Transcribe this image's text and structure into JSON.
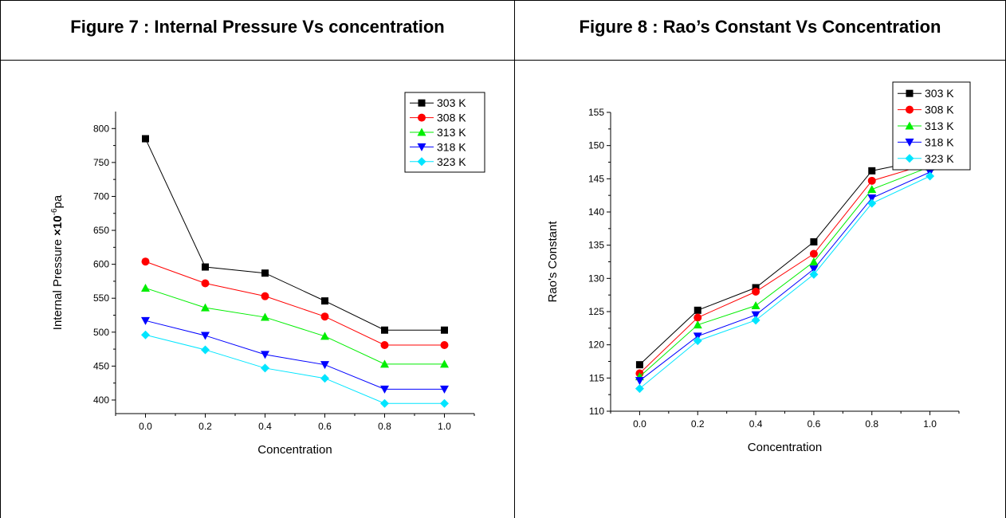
{
  "figures": [
    {
      "title": "Figure 7 :  Internal Pressure Vs concentration"
    },
    {
      "title": "Figure 8 :  Rao’s Constant Vs Concentration"
    }
  ],
  "chart_data": [
    {
      "type": "line",
      "title": "",
      "xlabel": "Concentration",
      "ylabel": "Internal Pressure",
      "ylabel_mult": "×10",
      "ylabel_exp": "-6",
      "ylabel_unit": "pa",
      "x": [
        0.0,
        0.2,
        0.4,
        0.6,
        0.8,
        1.0
      ],
      "x_tick_labels": [
        "0.0",
        "0.2",
        "0.4",
        "0.6",
        "0.8",
        "1.0"
      ],
      "xlim": [
        -0.1,
        1.1
      ],
      "y_ticks": [
        400,
        450,
        500,
        550,
        600,
        650,
        700,
        750,
        800
      ],
      "y_tick_labels": [
        "400",
        "450",
        "500",
        "550",
        "600",
        "650",
        "700",
        "750",
        "800"
      ],
      "ylim": [
        380,
        825
      ],
      "grid": false,
      "legend_position": "top-right",
      "series": [
        {
          "name": "303 K",
          "color": "#000000",
          "marker": "square",
          "values": [
            785,
            596,
            587,
            546,
            503,
            503
          ]
        },
        {
          "name": "308 K",
          "color": "#ff0000",
          "marker": "circle",
          "values": [
            604,
            572,
            553,
            523,
            481,
            481
          ]
        },
        {
          "name": "313 K",
          "color": "#00ee00",
          "marker": "triangle-up",
          "values": [
            565,
            536,
            522,
            494,
            453,
            453
          ]
        },
        {
          "name": "318 K",
          "color": "#0000ff",
          "marker": "triangle-down",
          "values": [
            517,
            495,
            467,
            452,
            416,
            416
          ]
        },
        {
          "name": "323 K",
          "color": "#00e5ff",
          "marker": "diamond",
          "values": [
            496,
            474,
            447,
            432,
            395,
            395
          ]
        }
      ]
    },
    {
      "type": "line",
      "title": "",
      "xlabel": "Concentration",
      "ylabel": "Rao's Constant",
      "x": [
        0.0,
        0.2,
        0.4,
        0.6,
        0.8,
        1.0
      ],
      "x_tick_labels": [
        "0.0",
        "0.2",
        "0.4",
        "0.6",
        "0.8",
        "1.0"
      ],
      "xlim": [
        -0.1,
        1.1
      ],
      "y_ticks": [
        110,
        115,
        120,
        125,
        130,
        135,
        140,
        145,
        150,
        155
      ],
      "y_tick_labels": [
        "110",
        "115",
        "120",
        "125",
        "130",
        "135",
        "140",
        "145",
        "150",
        "155"
      ],
      "ylim": [
        110,
        155
      ],
      "grid": false,
      "legend_position": "top-right",
      "series": [
        {
          "name": "303 K",
          "color": "#000000",
          "marker": "square",
          "values": [
            117.0,
            125.2,
            128.6,
            135.5,
            146.2,
            148.0
          ]
        },
        {
          "name": "308 K",
          "color": "#ff0000",
          "marker": "circle",
          "values": [
            115.7,
            124.1,
            128.0,
            133.7,
            144.7,
            147.3
          ]
        },
        {
          "name": "313 K",
          "color": "#00ee00",
          "marker": "triangle-up",
          "values": [
            115.2,
            123.0,
            125.9,
            132.5,
            143.4,
            146.8
          ]
        },
        {
          "name": "318 K",
          "color": "#0000ff",
          "marker": "triangle-down",
          "values": [
            114.6,
            121.3,
            124.5,
            131.4,
            142.1,
            146.0
          ]
        },
        {
          "name": "323 K",
          "color": "#00e5ff",
          "marker": "diamond",
          "values": [
            113.4,
            120.6,
            123.7,
            130.6,
            141.3,
            145.4
          ]
        }
      ]
    }
  ]
}
